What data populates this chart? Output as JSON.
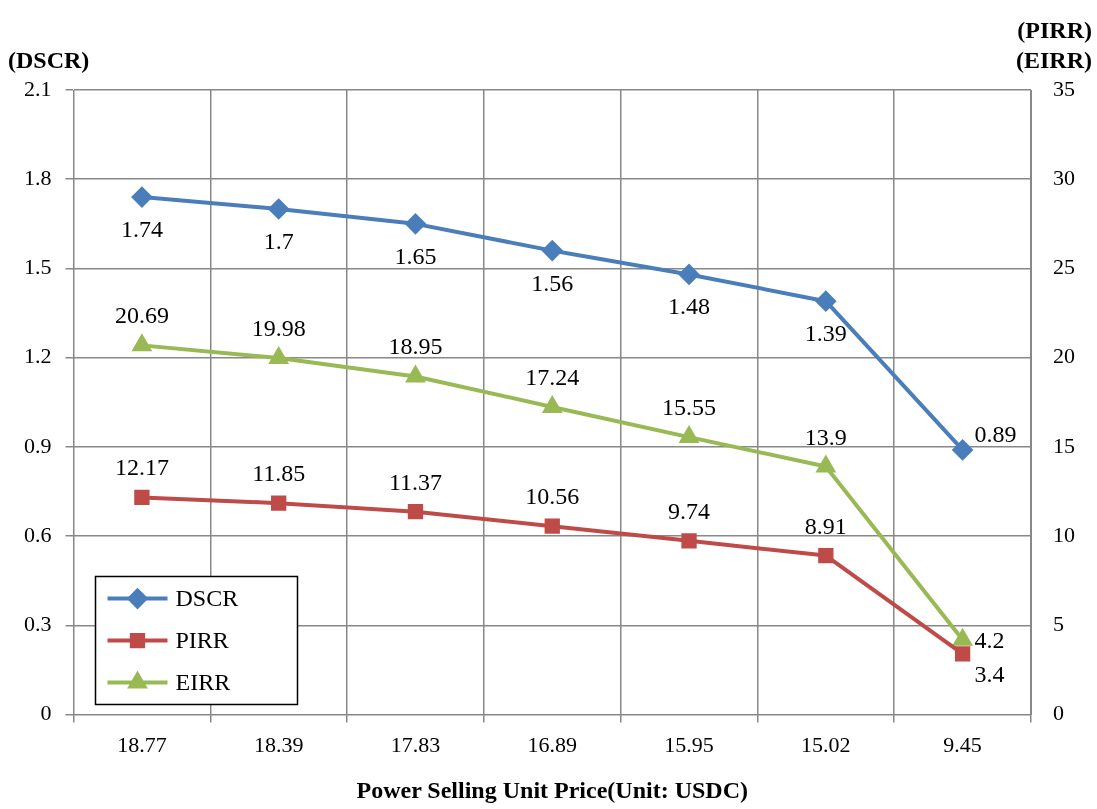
{
  "chart_data": {
    "type": "line",
    "xlabel": "Power Selling Unit Price(Unit: USDC)",
    "ylabel": "(DSCR)",
    "y2label": "(PIRR)\n(EIRR)",
    "categories": [
      "18.77",
      "18.39",
      "17.83",
      "16.89",
      "15.95",
      "15.02",
      "9.45"
    ],
    "series": [
      {
        "name": "DSCR",
        "color": "#4a7ebb",
        "marker": "diamond",
        "values": [
          1.74,
          1.7,
          1.65,
          1.56,
          1.48,
          1.39,
          0.89
        ]
      },
      {
        "name": "PIRR",
        "color": "#be4b48",
        "marker": "square",
        "axis": "y2",
        "values": [
          12.17,
          11.85,
          11.37,
          10.56,
          9.74,
          8.91,
          3.4
        ]
      },
      {
        "name": "EIRR",
        "color": "#98b954",
        "marker": "triangle",
        "axis": "y2",
        "values": [
          20.69,
          19.98,
          18.95,
          17.24,
          15.55,
          13.9,
          4.2
        ]
      }
    ],
    "ylim": [
      0,
      2.1
    ],
    "yticks": [
      0,
      0.3,
      0.6,
      0.9,
      1.2,
      1.5,
      1.8,
      2.1
    ],
    "y2lim": [
      0,
      35
    ],
    "y2ticks": [
      0,
      5,
      10,
      15,
      20,
      25,
      30,
      35
    ],
    "grid": true,
    "legend": "bottom left",
    "data_labels": true
  }
}
